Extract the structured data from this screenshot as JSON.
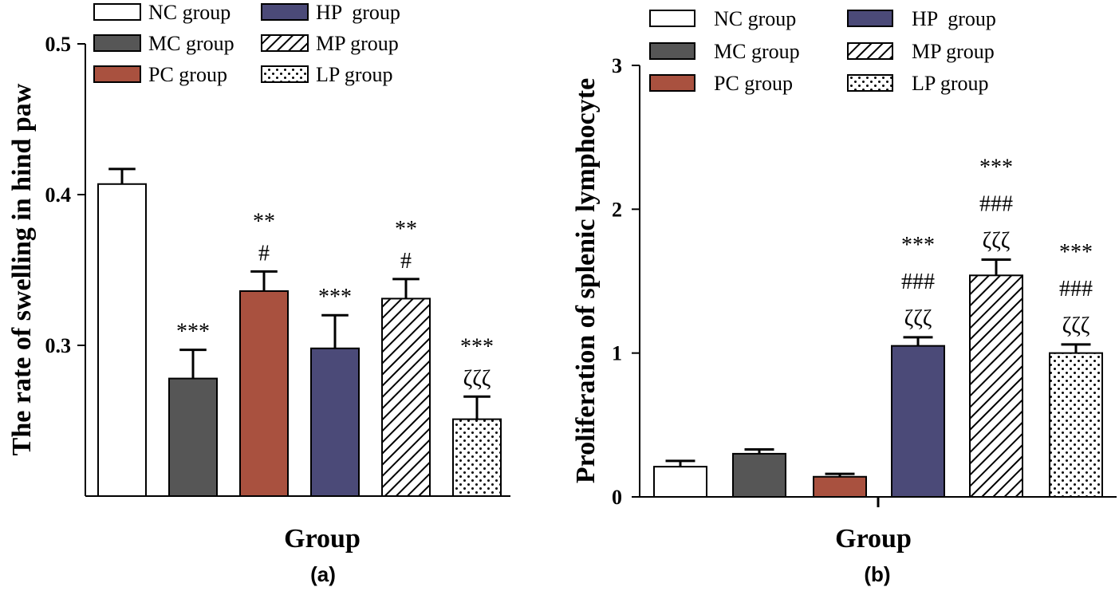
{
  "colors": {
    "NC": "#ffffff",
    "MC": "#565656",
    "PC": "#a9513f",
    "HP": "#4b4a78",
    "MP": "hatch",
    "LP": "dots"
  },
  "chart_data": [
    {
      "type": "bar",
      "panel_label": "(a)",
      "title": "",
      "xlabel": "Group",
      "ylabel": "The rate of swelling in hind paw",
      "ylim": [
        0.2,
        0.5
      ],
      "yticks": [
        0.3,
        0.4,
        0.5
      ],
      "ytick_labels": [
        "0.3",
        "0.4",
        "0.5"
      ],
      "grid": false,
      "legend_position": "top-center",
      "categories": [
        "NC group",
        "MC group",
        "PC group",
        "HP  group",
        "MP group",
        "LP group"
      ],
      "legend_order": [
        "NC group",
        "MC group",
        "PC group",
        "HP  group",
        "MP group",
        "LP group"
      ],
      "values": [
        0.407,
        0.278,
        0.336,
        0.298,
        0.331,
        0.251
      ],
      "errors": [
        0.01,
        0.019,
        0.013,
        0.022,
        0.013,
        0.015
      ],
      "annotations": [
        [],
        [
          "***"
        ],
        [
          "**",
          "#"
        ],
        [
          "***"
        ],
        [
          "**",
          "#"
        ],
        [
          "***",
          "ζζζ"
        ]
      ]
    },
    {
      "type": "bar",
      "panel_label": "(b)",
      "title": "",
      "xlabel": "Group",
      "ylabel": "Proliferation of splenic lymphocyte",
      "ylim": [
        0,
        3
      ],
      "yticks": [
        0,
        1,
        2,
        3
      ],
      "ytick_labels": [
        "0",
        "1",
        "2",
        "3"
      ],
      "grid": false,
      "legend_position": "top-center",
      "categories": [
        "NC group",
        "MC group",
        "PC group",
        "HP  group",
        "MP group",
        "LP group"
      ],
      "legend_order": [
        "NC group",
        "MC group",
        "PC group",
        "HP  group",
        "MP group",
        "LP group"
      ],
      "values": [
        0.21,
        0.3,
        0.14,
        1.05,
        1.54,
        1.0
      ],
      "errors": [
        0.04,
        0.03,
        0.02,
        0.06,
        0.11,
        0.06
      ],
      "annotations": [
        [],
        [],
        [],
        [
          "***",
          "###",
          "ζζζ"
        ],
        [
          "***",
          "###",
          "ζζζ"
        ],
        [
          "***",
          "###",
          "ζζζ"
        ]
      ]
    }
  ]
}
